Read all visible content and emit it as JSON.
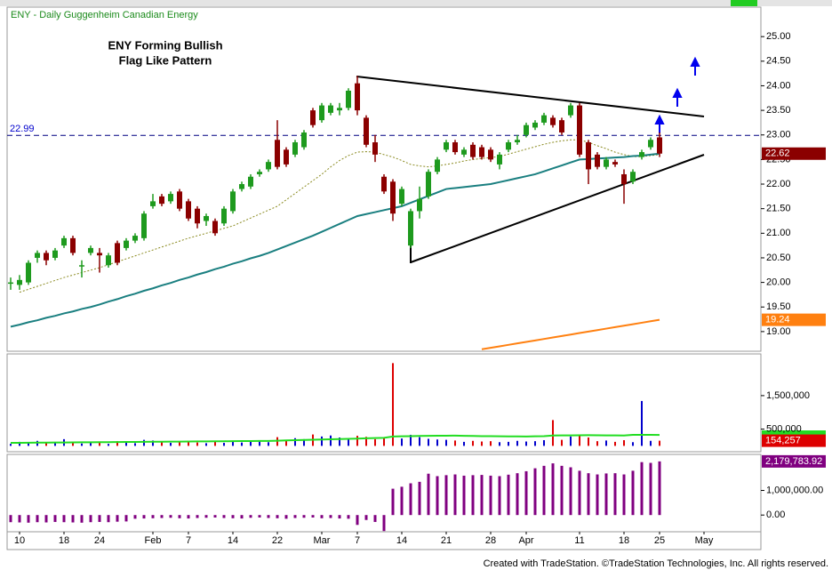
{
  "footer": "Created with TradeStation. ©TradeStation Technologies, Inc. All rights reserved.",
  "chart_data": [
    {
      "type": "candlestick",
      "title": "ENY - Daily  Guggenheim Canadian Energy",
      "annotations": [
        "ENY Forming Bullish",
        "Flag Like Pattern"
      ],
      "categories": [
        null,
        "10",
        null,
        null,
        null,
        null,
        "18",
        null,
        null,
        null,
        "24",
        null,
        null,
        null,
        null,
        null,
        "Feb",
        null,
        null,
        null,
        "7",
        null,
        null,
        null,
        null,
        "14",
        null,
        null,
        null,
        null,
        "22",
        null,
        null,
        null,
        null,
        "Mar",
        null,
        null,
        null,
        "7",
        null,
        null,
        null,
        null,
        "14",
        null,
        null,
        null,
        null,
        "21",
        null,
        null,
        null,
        null,
        "28",
        null,
        null,
        null,
        "Apr",
        null,
        null,
        null,
        null,
        null,
        "11",
        null,
        null,
        null,
        null,
        "18",
        null,
        null,
        null,
        "25",
        null,
        null,
        null,
        null,
        "May"
      ],
      "open": [
        20.0,
        19.95,
        20.0,
        20.5,
        20.6,
        20.5,
        20.75,
        20.9,
        20.35,
        20.6,
        20.6,
        20.35,
        20.8,
        20.7,
        20.85,
        20.9,
        21.55,
        21.75,
        21.65,
        21.85,
        21.65,
        21.5,
        21.25,
        21.25,
        21.2,
        21.45,
        21.9,
        21.95,
        22.2,
        22.3,
        22.9,
        22.7,
        22.6,
        22.75,
        23.5,
        23.3,
        23.45,
        23.5,
        23.55,
        24.05,
        23.35,
        22.85,
        22.15,
        22.05,
        21.6,
        20.75,
        21.45,
        21.75,
        22.25,
        22.7,
        22.85,
        22.6,
        22.8,
        22.75,
        22.7,
        22.4,
        22.7,
        22.85,
        23.0,
        23.15,
        23.25,
        23.35,
        23.3,
        23.4,
        23.6,
        22.85,
        22.6,
        22.35,
        22.45,
        22.2,
        22.05,
        22.55,
        22.75,
        22.95,
        null,
        null,
        null,
        null,
        null
      ],
      "high": [
        20.1,
        20.15,
        20.45,
        20.65,
        20.65,
        20.7,
        20.95,
        20.95,
        20.45,
        20.75,
        20.7,
        20.6,
        20.85,
        20.9,
        21.0,
        21.45,
        21.8,
        21.8,
        21.85,
        21.9,
        21.7,
        21.55,
        21.4,
        21.3,
        21.55,
        21.9,
        22.05,
        22.2,
        22.3,
        22.5,
        23.3,
        22.75,
        22.9,
        23.1,
        23.55,
        23.65,
        23.65,
        23.65,
        23.95,
        24.2,
        23.4,
        23.0,
        22.2,
        22.1,
        21.95,
        21.5,
        21.95,
        22.3,
        22.55,
        22.9,
        22.9,
        22.75,
        22.85,
        22.8,
        22.75,
        22.65,
        22.9,
        23.0,
        23.25,
        23.3,
        23.45,
        23.4,
        23.35,
        23.65,
        23.65,
        22.9,
        22.65,
        22.55,
        22.5,
        22.3,
        22.3,
        22.7,
        22.95,
        23.05,
        null,
        null,
        null,
        null,
        null
      ],
      "low": [
        19.85,
        19.85,
        19.95,
        20.4,
        20.35,
        20.45,
        20.7,
        20.55,
        20.1,
        20.55,
        20.2,
        20.3,
        20.35,
        20.65,
        20.8,
        20.85,
        21.5,
        21.55,
        21.6,
        21.45,
        21.25,
        21.1,
        21.15,
        20.95,
        21.15,
        21.4,
        21.85,
        21.9,
        22.15,
        22.25,
        22.3,
        22.35,
        22.55,
        22.7,
        23.15,
        23.25,
        23.4,
        23.4,
        23.5,
        23.4,
        22.75,
        22.45,
        21.8,
        21.25,
        21.55,
        20.7,
        21.3,
        21.7,
        22.2,
        22.65,
        22.6,
        22.55,
        22.5,
        22.5,
        22.45,
        22.3,
        22.65,
        22.8,
        22.95,
        23.1,
        23.2,
        23.15,
        23.0,
        23.35,
        22.55,
        22.0,
        22.3,
        22.3,
        22.35,
        21.6,
        22.0,
        22.5,
        22.7,
        22.55,
        null,
        null,
        null,
        null,
        null
      ],
      "close": [
        20.0,
        20.05,
        20.4,
        20.6,
        20.45,
        20.65,
        20.9,
        20.6,
        20.35,
        20.7,
        20.55,
        20.55,
        20.4,
        20.85,
        20.95,
        21.4,
        21.65,
        21.6,
        21.8,
        21.5,
        21.3,
        21.2,
        21.35,
        21.0,
        21.5,
        21.85,
        22.0,
        22.15,
        22.25,
        22.45,
        22.35,
        22.4,
        22.85,
        23.05,
        23.2,
        23.6,
        23.6,
        23.55,
        23.9,
        23.5,
        22.8,
        22.6,
        21.85,
        21.4,
        21.9,
        21.45,
        21.7,
        22.25,
        22.5,
        22.85,
        22.65,
        22.7,
        22.55,
        22.55,
        22.5,
        22.6,
        22.85,
        22.9,
        23.2,
        23.25,
        23.4,
        23.2,
        23.05,
        23.6,
        22.6,
        22.3,
        22.35,
        22.5,
        22.4,
        22.0,
        22.25,
        22.65,
        22.9,
        22.62,
        null,
        null,
        null,
        null,
        null
      ],
      "up_color": "#1e9a1e",
      "down_color": "#8b0000",
      "overlays": [
        {
          "color": "#8a8a20",
          "dash": true,
          "values": [
            null,
            19.8,
            19.86,
            19.92,
            19.98,
            20.04,
            20.1,
            20.15,
            20.2,
            20.25,
            20.3,
            20.36,
            20.42,
            20.48,
            20.54,
            20.6,
            20.66,
            20.72,
            20.78,
            20.84,
            20.9,
            20.95,
            21.0,
            21.05,
            21.1,
            21.15,
            21.23,
            21.31,
            21.39,
            21.47,
            21.55,
            21.68,
            21.81,
            21.94,
            22.07,
            22.2,
            22.35,
            22.48,
            22.58,
            22.65,
            22.66,
            22.65,
            22.6,
            22.55,
            22.48,
            22.4,
            22.37,
            22.35,
            22.37,
            22.4,
            22.43,
            22.47,
            22.5,
            22.52,
            22.54,
            22.56,
            22.61,
            22.66,
            22.71,
            22.76,
            22.81,
            22.85,
            22.88,
            22.9,
            22.9,
            22.85,
            22.78,
            22.72,
            22.65,
            22.6,
            22.56,
            22.56,
            22.58,
            22.6,
            null,
            null,
            null,
            null,
            null
          ]
        },
        {
          "color": "#1a7f80",
          "dash": false,
          "values": [
            19.1,
            19.14,
            19.19,
            19.23,
            19.28,
            19.32,
            19.37,
            19.41,
            19.46,
            19.5,
            19.55,
            19.61,
            19.66,
            19.72,
            19.77,
            19.83,
            19.88,
            19.94,
            19.99,
            20.05,
            20.1,
            20.16,
            20.21,
            20.27,
            20.32,
            20.38,
            20.43,
            20.49,
            20.54,
            20.6,
            20.67,
            20.74,
            20.81,
            20.88,
            20.95,
            21.03,
            21.11,
            21.19,
            21.27,
            21.35,
            21.39,
            21.43,
            21.47,
            21.51,
            21.55,
            21.62,
            21.69,
            21.76,
            21.83,
            21.9,
            21.92,
            21.94,
            21.96,
            21.98,
            22.0,
            22.04,
            22.08,
            22.12,
            22.16,
            22.2,
            22.26,
            22.32,
            22.38,
            22.44,
            22.5,
            22.51,
            22.52,
            22.53,
            22.54,
            22.55,
            22.57,
            22.58,
            22.6,
            22.62,
            null,
            null,
            null,
            null,
            null
          ]
        },
        {
          "color": "#ff8010",
          "dash": false,
          "label_last": true,
          "values": [
            null,
            null,
            null,
            null,
            null,
            null,
            null,
            null,
            null,
            null,
            null,
            null,
            null,
            null,
            null,
            null,
            null,
            null,
            null,
            null,
            null,
            null,
            null,
            null,
            null,
            null,
            null,
            null,
            null,
            null,
            null,
            null,
            null,
            null,
            null,
            null,
            null,
            null,
            null,
            null,
            null,
            null,
            null,
            null,
            null,
            null,
            null,
            null,
            null,
            null,
            null,
            null,
            null,
            18.64,
            18.67,
            18.7,
            18.73,
            18.76,
            18.79,
            18.82,
            18.85,
            18.88,
            18.91,
            18.94,
            18.97,
            19.0,
            19.03,
            19.06,
            19.09,
            19.12,
            19.15,
            19.18,
            19.21,
            19.24,
            null,
            null,
            null,
            null,
            null
          ]
        }
      ],
      "hline": 22.99,
      "ylim": [
        18.6,
        25.6
      ],
      "yticks": [
        {
          "value": 19,
          "label": "19.00"
        },
        {
          "value": 19.5,
          "label": "19.50"
        },
        {
          "value": 20,
          "label": "20.00"
        },
        {
          "value": 20.5,
          "label": "20.50"
        },
        {
          "value": 21,
          "label": "21.00"
        },
        {
          "value": 21.5,
          "label": "21.50"
        },
        {
          "value": 22,
          "label": "22.00"
        },
        {
          "value": 22.5,
          "label": "22.50"
        },
        {
          "value": 23,
          "label": "23.00"
        },
        {
          "value": 23.5,
          "label": "23.50"
        },
        {
          "value": 24,
          "label": "24.00"
        },
        {
          "value": 24.5,
          "label": "24.50"
        },
        {
          "value": 25,
          "label": "25.00"
        }
      ]
    },
    {
      "type": "bar",
      "values": [
        60000,
        120000,
        90000,
        150000,
        80000,
        100000,
        200000,
        130000,
        70000,
        90000,
        110000,
        60000,
        140000,
        100000,
        80000,
        180000,
        160000,
        120000,
        90000,
        130000,
        150000,
        100000,
        80000,
        120000,
        90000,
        140000,
        100000,
        170000,
        130000,
        110000,
        260000,
        180000,
        230000,
        200000,
        340000,
        280000,
        310000,
        250000,
        220000,
        300000,
        270000,
        200000,
        240000,
        2470000,
        220000,
        330000,
        260000,
        210000,
        190000,
        180000,
        160000,
        120000,
        150000,
        130000,
        140000,
        110000,
        120000,
        150000,
        130000,
        140000,
        170000,
        770000,
        180000,
        280000,
        290000,
        250000,
        140000,
        160000,
        120000,
        170000,
        110000,
        1340000,
        150000,
        154257,
        null,
        null,
        null,
        null,
        null
      ],
      "value_labels": [
        null,
        null,
        null,
        null,
        null,
        null,
        null,
        null,
        null,
        null,
        null,
        null,
        null,
        null,
        null,
        null,
        null,
        null,
        null,
        null,
        null,
        null,
        null,
        null,
        null,
        null,
        null,
        null,
        null,
        null,
        null,
        null,
        null,
        null,
        null,
        null,
        null,
        null,
        null,
        null,
        null,
        null,
        null,
        null,
        null,
        null,
        null,
        null,
        null,
        null,
        null,
        null,
        null,
        null,
        null,
        null,
        null,
        null,
        null,
        null,
        null,
        null,
        null,
        null,
        null,
        null,
        null,
        null,
        null,
        null,
        null,
        null,
        null,
        "154,257",
        null,
        null,
        null,
        null,
        null
      ],
      "up_color": "#0000cc",
      "down_color": "#dd0000",
      "average": {
        "color": "#22dd22",
        "values": [
          90000,
          92000,
          94000,
          96000,
          98000,
          100000,
          102000,
          104000,
          106000,
          108000,
          110000,
          112000,
          114000,
          116000,
          118000,
          120000,
          122000,
          124000,
          126000,
          128000,
          130000,
          132000,
          134000,
          136000,
          138000,
          140000,
          142000,
          144000,
          146000,
          148000,
          155000,
          162000,
          169000,
          176000,
          183000,
          190000,
          197000,
          204000,
          211000,
          218000,
          225000,
          232000,
          239000,
          280000,
          285000,
          290000,
          295000,
          300000,
          302000,
          304000,
          306000,
          300000,
          295000,
          290000,
          288000,
          286000,
          284000,
          282000,
          280000,
          285000,
          290000,
          310000,
          312000,
          314000,
          316000,
          318000,
          316000,
          314000,
          312000,
          310000,
          330000,
          330000,
          328000,
          326000,
          null,
          null,
          null,
          null,
          null
        ]
      },
      "ylim": [
        -175000,
        2745000
      ],
      "yticks": [
        {
          "value": 500000,
          "label": "500,000"
        },
        {
          "value": 1500000,
          "label": "1,500,000"
        }
      ]
    },
    {
      "type": "bar",
      "color": "#800080",
      "values": [
        -290000,
        -300000,
        -310000,
        -290000,
        -300000,
        -280000,
        -290000,
        -300000,
        -310000,
        -290000,
        -280000,
        -290000,
        -270000,
        -260000,
        -150000,
        -140000,
        -130000,
        -120000,
        -110000,
        -130000,
        -140000,
        -120000,
        -110000,
        -100000,
        -120000,
        -130000,
        -140000,
        -110000,
        -100000,
        -120000,
        -130000,
        -150000,
        -120000,
        -110000,
        -100000,
        -130000,
        -120000,
        -140000,
        -150000,
        -400000,
        -200000,
        -280000,
        -650000,
        1070000,
        1150000,
        1290000,
        1350000,
        1680000,
        1580000,
        1620000,
        1650000,
        1600000,
        1620000,
        1630000,
        1600000,
        1580000,
        1640000,
        1700000,
        1780000,
        1900000,
        2000000,
        2100000,
        2000000,
        1940000,
        1800000,
        1700000,
        1650000,
        1690000,
        1700000,
        1650000,
        1800000,
        2150000,
        2120000,
        2179783.92,
        null,
        null,
        null,
        null,
        null
      ],
      "value_labels": [
        null,
        null,
        null,
        null,
        null,
        null,
        null,
        null,
        null,
        null,
        null,
        null,
        null,
        null,
        null,
        null,
        null,
        null,
        null,
        null,
        null,
        null,
        null,
        null,
        null,
        null,
        null,
        null,
        null,
        null,
        null,
        null,
        null,
        null,
        null,
        null,
        null,
        null,
        null,
        null,
        null,
        null,
        null,
        null,
        null,
        null,
        null,
        null,
        null,
        null,
        null,
        null,
        null,
        null,
        null,
        null,
        null,
        null,
        null,
        null,
        null,
        null,
        null,
        null,
        null,
        null,
        null,
        null,
        null,
        null,
        null,
        null,
        null,
        "2,179,783.92",
        null,
        null,
        null,
        null,
        null
      ],
      "ylim": [
        -679000,
        2464000
      ],
      "yticks": [
        {
          "value": 0,
          "label": "0.00"
        },
        {
          "value": 1000000,
          "label": "1,000,000.00"
        }
      ]
    }
  ]
}
